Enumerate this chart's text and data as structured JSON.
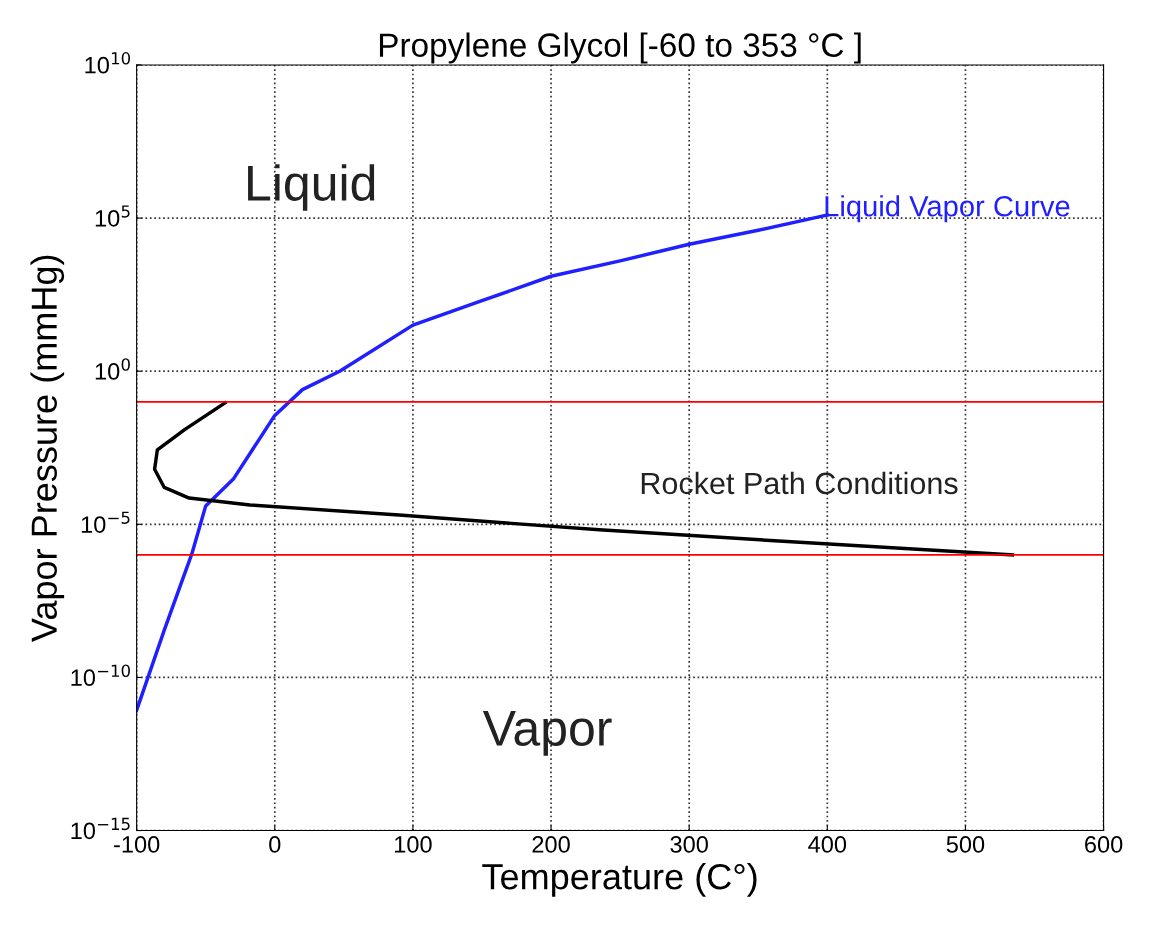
{
  "chart_data": {
    "type": "line",
    "title": "Propylene Glycol [-60 to 353 °C ]",
    "xlabel": "Temperature (C°)",
    "ylabel": "Vapor Pressure (mmHg)",
    "log": "y",
    "grid": true,
    "line_style": "solid",
    "marker": "none",
    "xlim": [
      -100,
      600
    ],
    "xticks": [
      -100,
      0,
      100,
      200,
      300,
      400,
      500,
      600
    ],
    "ylim": [
      1e-15,
      10000000000.0
    ],
    "yticks": [
      {
        "value": 1e-15,
        "label": "10$^{−15}$"
      },
      {
        "value": 1e-10,
        "label": "10$^{−10}$"
      },
      {
        "value": 1e-05,
        "label": "10$^{−5}$"
      },
      {
        "value": 1,
        "label": "10$^{0}$"
      },
      {
        "value": 100000.0,
        "label": "10$^{5}$"
      },
      {
        "value": 10000000000.0,
        "label": "10$^{10}$"
      }
    ],
    "series": [
      {
        "name": "Liquid Vapor Curve",
        "color": "#1f1fff",
        "x": [
          -100,
          -80,
          -60,
          -50,
          -30,
          0,
          20,
          47,
          100,
          150,
          200,
          250,
          300,
          350,
          400
        ],
        "values": [
          8.5e-12,
          3.5e-09,
          1.1e-06,
          4e-05,
          0.0003,
          0.036,
          0.25,
          1,
          32,
          200,
          1260,
          4000,
          14000,
          40000,
          126000
        ]
      },
      {
        "color": "#000000",
        "x": [
          -36,
          -65,
          -85,
          -87,
          -80,
          -62,
          -18,
          90,
          235,
          380,
          534
        ],
        "values": [
          0.093,
          0.0126,
          0.0027,
          0.00063,
          0.00016,
          7.2e-05,
          4.3e-05,
          2e-05,
          6.6e-06,
          2.6e-06,
          1e-06
        ]
      }
    ],
    "ref_lines": [
      {
        "axis": "y",
        "value": 0.1,
        "color": "#ff0000"
      },
      {
        "axis": "y",
        "value": 1e-06,
        "color": "#ff0000"
      }
    ],
    "annotations": [
      "Liquid",
      "Vapor",
      "Rocket Path Conditions"
    ]
  }
}
